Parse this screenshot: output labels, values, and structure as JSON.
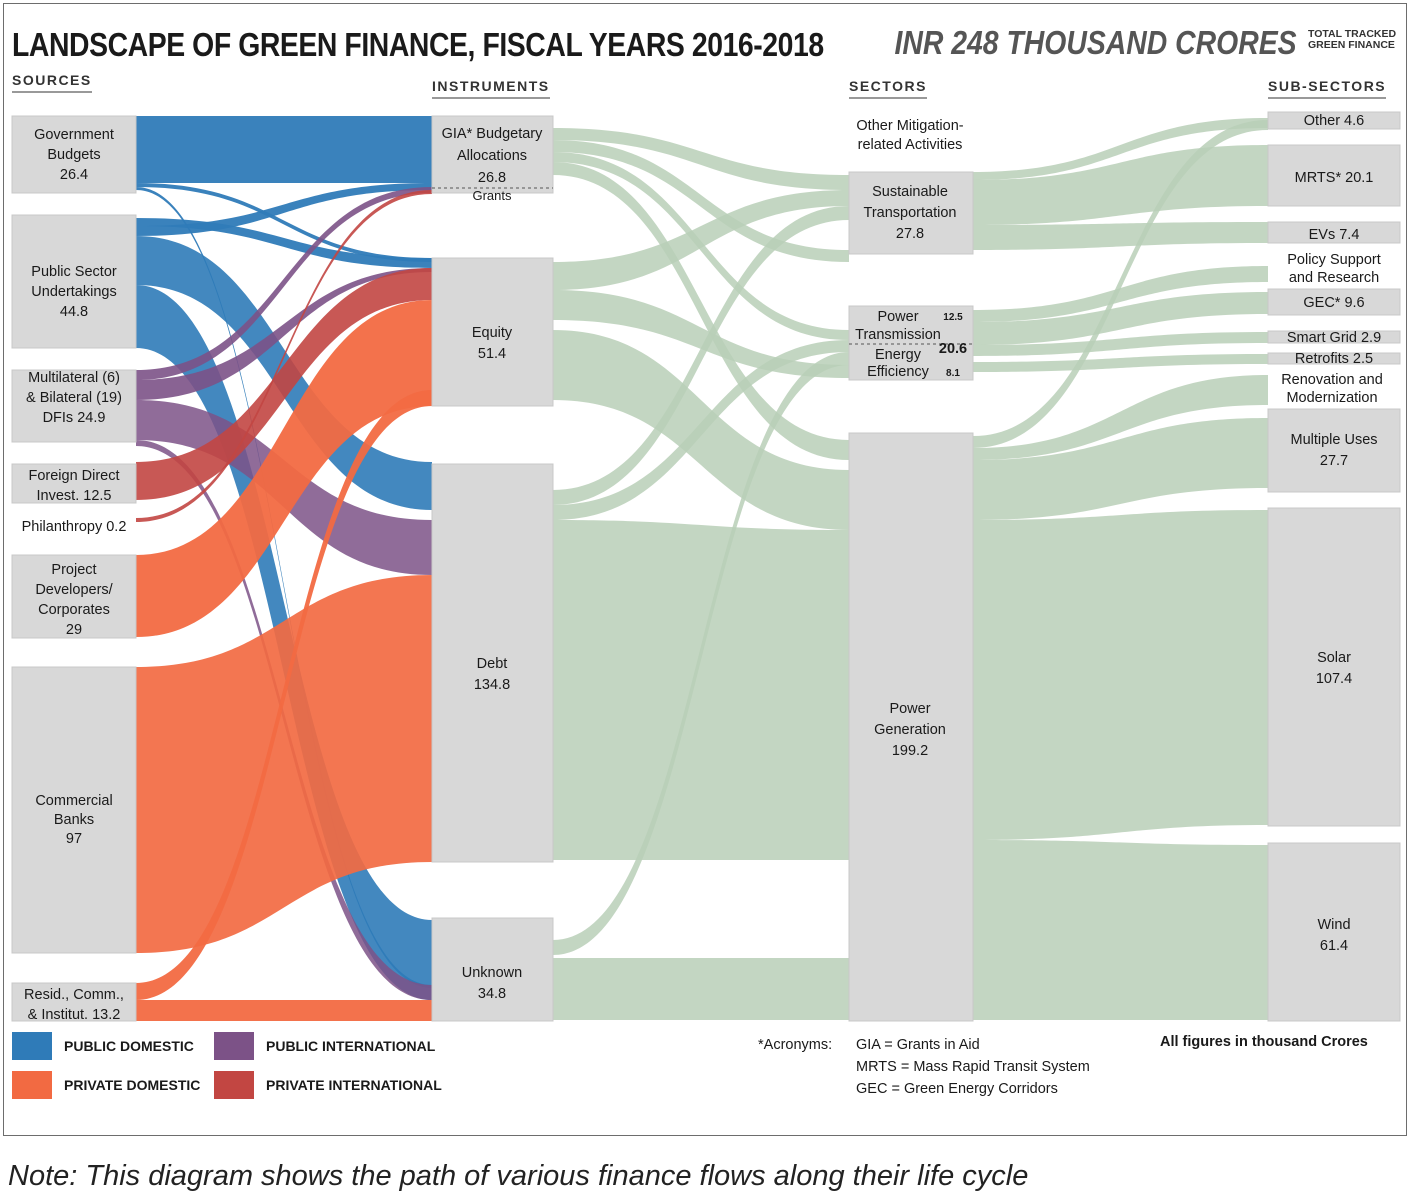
{
  "title": "LANDSCAPE OF GREEN FINANCE, FISCAL YEARS 2016-2018",
  "total": "INR 248 THOUSAND CRORES",
  "total_label": "TOTAL TRACKED GREEN FINANCE",
  "headers": {
    "sources": "SOURCES",
    "instruments": "INSTRUMENTS",
    "sectors": "SECTORS",
    "subsectors": "SUB-SECTORS"
  },
  "colors": {
    "public_domestic": "#2f7bb8",
    "private_domestic": "#f26a42",
    "public_international": "#7c5287",
    "private_international": "#c24642",
    "flow_green": "#b9cfb7",
    "node": "#d8d8d8"
  },
  "sources": [
    {
      "lines": [
        "Government",
        "Budgets",
        "26.4"
      ]
    },
    {
      "lines": [
        "Public Sector",
        "Undertakings",
        "44.8"
      ]
    },
    {
      "lines": [
        "Multilateral (6)",
        "& Bilateral (19)",
        "DFIs 24.9"
      ]
    },
    {
      "lines": [
        "Foreign Direct",
        "Invest. 12.5"
      ]
    },
    {
      "lines": [
        "Philanthropy 0.2"
      ]
    },
    {
      "lines": [
        "Project",
        "Developers/",
        "Corporates",
        "29"
      ]
    },
    {
      "lines": [
        "Commercial",
        "Banks",
        "97"
      ]
    },
    {
      "lines": [
        "Resid., Comm.,",
        "& Institut. 13.2"
      ]
    }
  ],
  "instruments": [
    {
      "lines": [
        "GIA* Budgetary",
        "Allocations",
        "26.8"
      ]
    },
    {
      "lines": [
        "Grants"
      ]
    },
    {
      "lines": [
        "Equity",
        "51.4"
      ]
    },
    {
      "lines": [
        "Debt",
        "134.8"
      ]
    },
    {
      "lines": [
        "Unknown",
        "34.8"
      ]
    }
  ],
  "sectors": [
    {
      "lines": [
        "Other Mitigation-",
        "related Activities"
      ]
    },
    {
      "lines": [
        "Sustainable",
        "Transportation",
        "27.8"
      ]
    },
    {
      "lines": [
        "Power",
        "Transmission",
        "Energy",
        "Efficiency"
      ],
      "values": [
        "12.5",
        "20.6",
        "8.1"
      ]
    },
    {
      "lines": [
        "Power",
        "Generation",
        "199.2"
      ]
    }
  ],
  "subsectors": [
    {
      "label": "Other 4.6"
    },
    {
      "label": "MRTS* 20.1"
    },
    {
      "label": "EVs 7.4"
    },
    {
      "lines": [
        "Policy Support",
        "and Research"
      ]
    },
    {
      "label": "GEC* 9.6"
    },
    {
      "label": "Smart Grid 2.9"
    },
    {
      "label": "Retrofits 2.5"
    },
    {
      "lines": [
        "Renovation and",
        "Modernization"
      ]
    },
    {
      "lines": [
        "Multiple Uses",
        "27.7"
      ]
    },
    {
      "lines": [
        "Solar",
        "107.4"
      ]
    },
    {
      "lines": [
        "Wind",
        "61.4"
      ]
    }
  ],
  "legend": [
    {
      "label": "PUBLIC DOMESTIC",
      "color": "#2f7bb8"
    },
    {
      "label": "PUBLIC INTERNATIONAL",
      "color": "#7c5287"
    },
    {
      "label": "PRIVATE DOMESTIC",
      "color": "#f26a42"
    },
    {
      "label": "PRIVATE INTERNATIONAL",
      "color": "#c24642"
    }
  ],
  "acronyms_title": "*Acronyms:",
  "acronyms": [
    "GIA = Grants in Aid",
    "MRTS = Mass Rapid Transit System",
    "GEC = Green Energy Corridors"
  ],
  "figures_note": "All figures in thousand Crores",
  "note": "Note: This diagram shows the path of various finance flows along their life cycle"
}
